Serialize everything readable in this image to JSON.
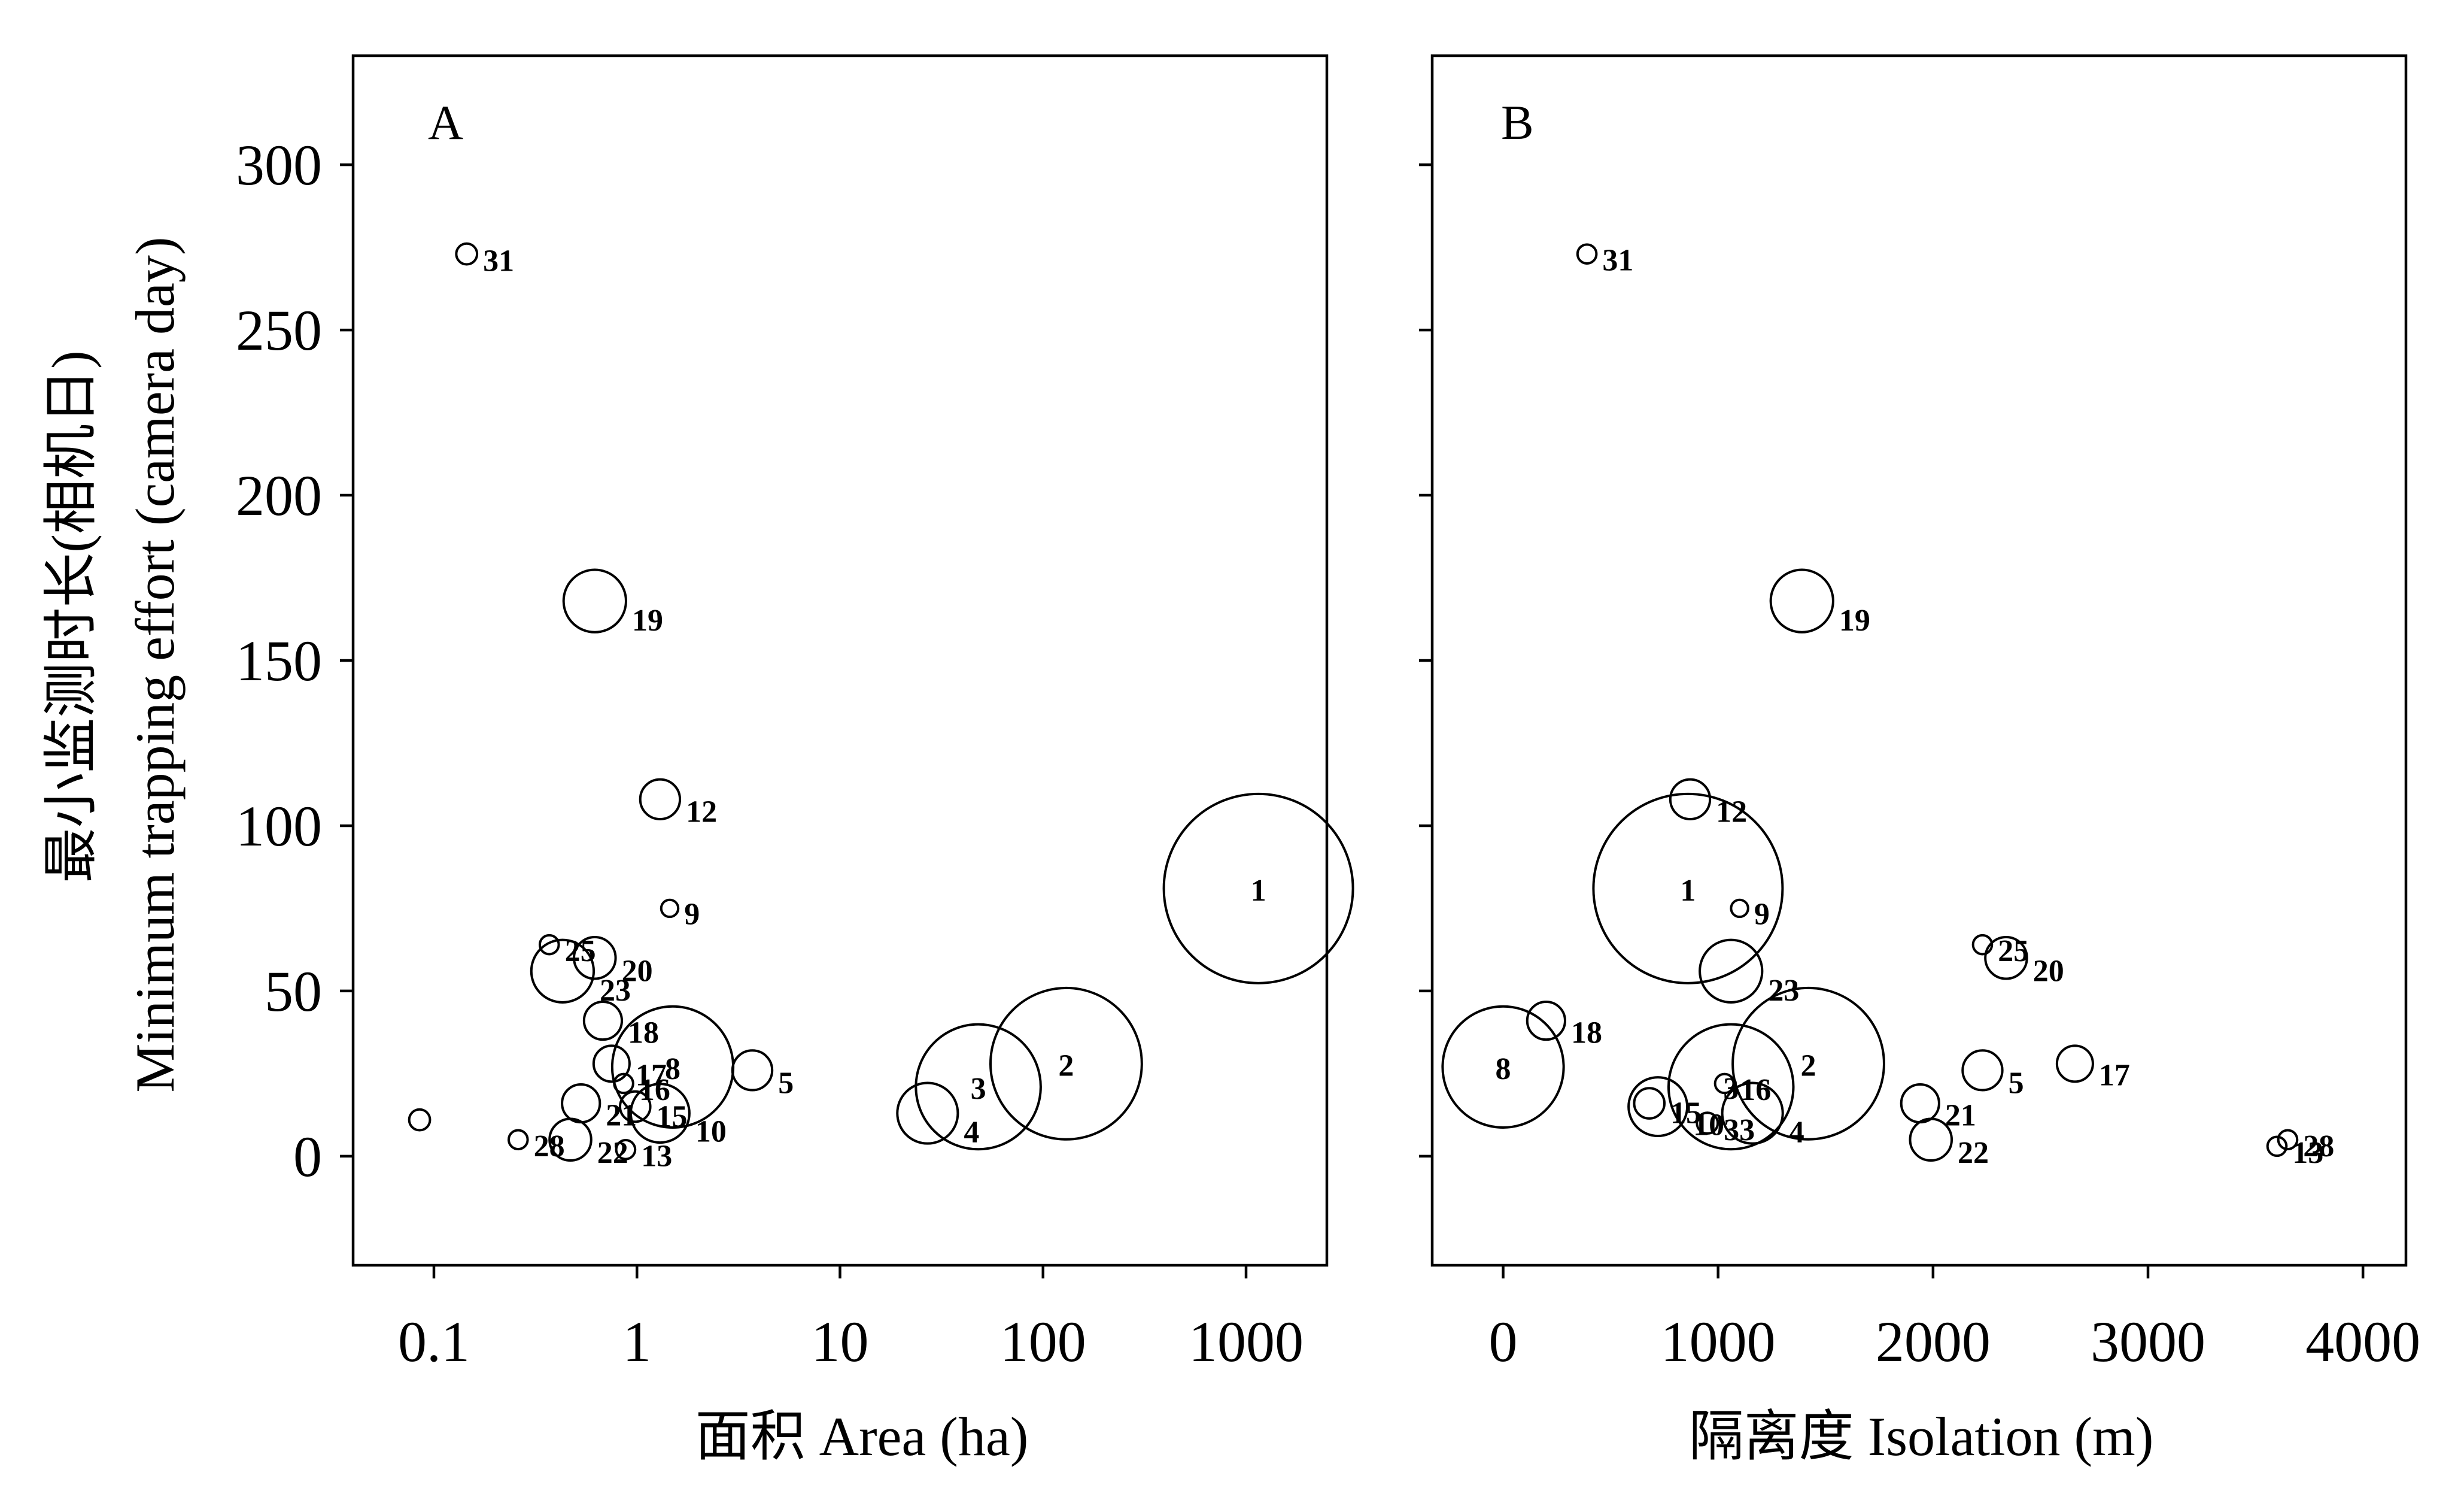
{
  "chart_data": [
    {
      "type": "scatter",
      "panel": "A",
      "xlabel": "面积  Area (ha)",
      "ylabel_cn": "最小监测时长(相机日)",
      "ylabel_en": "Minimum trapping effort (camera day)",
      "x_scale": "log",
      "xlim": [
        0.04,
        2500
      ],
      "ylim": [
        -33,
        333
      ],
      "xticks": [
        0.1,
        1,
        10,
        100,
        1000
      ],
      "xtick_labels": [
        "0.1",
        "1",
        "10",
        "100",
        "1000"
      ],
      "yticks": [
        0,
        50,
        100,
        150,
        200,
        250,
        300
      ],
      "ytick_labels": [
        "0",
        "50",
        "100",
        "150",
        "200",
        "250",
        "300"
      ],
      "bubble_size": "radius proportional to patch area",
      "points": [
        {
          "id": "1",
          "x": 1150,
          "y": 81,
          "r": 1.0
        },
        {
          "id": "2",
          "x": 130,
          "y": 28,
          "r": 0.8
        },
        {
          "id": "3",
          "x": 48,
          "y": 21,
          "r": 0.66
        },
        {
          "id": "4",
          "x": 27,
          "y": 13,
          "r": 0.32
        },
        {
          "id": "5",
          "x": 3.7,
          "y": 26,
          "r": 0.21
        },
        {
          "id": "8",
          "x": 1.5,
          "y": 27,
          "r": 0.64
        },
        {
          "id": "9",
          "x": 1.45,
          "y": 75,
          "r": 0.09
        },
        {
          "id": "10",
          "x": 1.3,
          "y": 13,
          "r": 0.31
        },
        {
          "id": "12",
          "x": 1.3,
          "y": 108,
          "r": 0.21
        },
        {
          "id": "13",
          "x": 0.88,
          "y": 2,
          "r": 0.1
        },
        {
          "id": "15",
          "x": 0.98,
          "y": 15,
          "r": 0.16
        },
        {
          "id": "16",
          "x": 0.86,
          "y": 22,
          "r": 0.1
        },
        {
          "id": "17",
          "x": 0.75,
          "y": 28,
          "r": 0.19
        },
        {
          "id": "18",
          "x": 0.68,
          "y": 41,
          "r": 0.2
        },
        {
          "id": "19",
          "x": 0.62,
          "y": 168,
          "r": 0.33
        },
        {
          "id": "20",
          "x": 0.62,
          "y": 60,
          "r": 0.22
        },
        {
          "id": "21",
          "x": 0.53,
          "y": 16,
          "r": 0.2
        },
        {
          "id": "22",
          "x": 0.47,
          "y": 5,
          "r": 0.22
        },
        {
          "id": "23",
          "x": 0.43,
          "y": 56,
          "r": 0.33
        },
        {
          "id": "25",
          "x": 0.37,
          "y": 64,
          "r": 0.1
        },
        {
          "id": "28",
          "x": 0.26,
          "y": 5,
          "r": 0.1
        },
        {
          "id": "31",
          "x": 0.145,
          "y": 273,
          "r": 0.11
        },
        {
          "id": "",
          "x": 0.085,
          "y": 11,
          "r": 0.11
        }
      ]
    },
    {
      "type": "scatter",
      "panel": "B",
      "xlabel": "隔离度  Isolation (m)",
      "xlim": [
        -330,
        4200
      ],
      "ylim": [
        -33,
        333
      ],
      "xticks": [
        0,
        1000,
        2000,
        3000,
        4000
      ],
      "xtick_labels": [
        "0",
        "1000",
        "2000",
        "3000",
        "4000"
      ],
      "bubble_size": "radius proportional to patch area",
      "points": [
        {
          "id": "1",
          "x": 860,
          "y": 81,
          "r": 1.0
        },
        {
          "id": "2",
          "x": 1420,
          "y": 28,
          "r": 0.8
        },
        {
          "id": "3",
          "x": 1060,
          "y": 21,
          "r": 0.66
        },
        {
          "id": "4",
          "x": 1160,
          "y": 13,
          "r": 0.32
        },
        {
          "id": "5",
          "x": 2230,
          "y": 26,
          "r": 0.21
        },
        {
          "id": "8",
          "x": 0,
          "y": 27,
          "r": 0.64
        },
        {
          "id": "9",
          "x": 1100,
          "y": 75,
          "r": 0.09
        },
        {
          "id": "10",
          "x": 720,
          "y": 15,
          "r": 0.31
        },
        {
          "id": "12",
          "x": 870,
          "y": 108,
          "r": 0.21
        },
        {
          "id": "13",
          "x": 3600,
          "y": 3,
          "r": 0.1
        },
        {
          "id": "15",
          "x": 680,
          "y": 16,
          "r": 0.16
        },
        {
          "id": "16",
          "x": 1030,
          "y": 22,
          "r": 0.1
        },
        {
          "id": "17",
          "x": 2660,
          "y": 28,
          "r": 0.19
        },
        {
          "id": "18",
          "x": 200,
          "y": 41,
          "r": 0.2
        },
        {
          "id": "19",
          "x": 1390,
          "y": 168,
          "r": 0.33
        },
        {
          "id": "20",
          "x": 2340,
          "y": 60,
          "r": 0.22
        },
        {
          "id": "21",
          "x": 1940,
          "y": 16,
          "r": 0.2
        },
        {
          "id": "22",
          "x": 1990,
          "y": 5,
          "r": 0.22
        },
        {
          "id": "23",
          "x": 1060,
          "y": 56,
          "r": 0.33
        },
        {
          "id": "25",
          "x": 2230,
          "y": 64,
          "r": 0.1
        },
        {
          "id": "28",
          "x": 3650,
          "y": 5,
          "r": 0.1
        },
        {
          "id": "31",
          "x": 390,
          "y": 273,
          "r": 0.1
        },
        {
          "id": "33",
          "x": 950,
          "y": 10,
          "r": 0.11
        }
      ]
    }
  ]
}
